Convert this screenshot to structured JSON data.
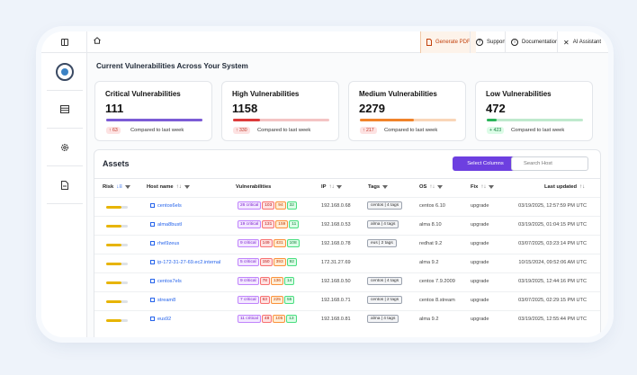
{
  "sidebar": {
    "toggle_icon": "sidebar-toggle-icon",
    "items": [
      {
        "name": "logo"
      },
      {
        "name": "assets",
        "icon": "table-icon"
      },
      {
        "name": "settings",
        "icon": "gear-icon"
      },
      {
        "name": "reports",
        "icon": "file-icon"
      }
    ]
  },
  "topbar": {
    "generate_pdf": "Generate PDF",
    "support": "Support",
    "documentation": "Documentation",
    "ai_assistant": "AI Assistant"
  },
  "page_title": "Current Vulnerabilities Across Your System",
  "cards": [
    {
      "title": "Critical Vulnerabilities",
      "count": "111",
      "change": "↑ 63",
      "compare": "Compared to last week",
      "color": "#7c5cd6",
      "track": "#d9cdf3",
      "fill": 1.0
    },
    {
      "title": "High Vulnerabilities",
      "count": "1158",
      "change": "↑ 330",
      "compare": "Compared to last week",
      "color": "#dc3b3b",
      "track": "#f4c4c4",
      "fill": 0.28
    },
    {
      "title": "Medium Vulnerabilities",
      "count": "2279",
      "change": "↑ 217",
      "compare": "Compared to last week",
      "color": "#f0832a",
      "track": "#f9d6b8",
      "fill": 0.56
    },
    {
      "title": "Low Vulnerabilities",
      "count": "472",
      "change": "+ 423",
      "compare": "Compared to last week",
      "color": "#2bb55a",
      "track": "#bfe9cd",
      "fill": 0.1
    }
  ],
  "assets": {
    "title": "Assets",
    "select_columns": "Select Columns",
    "search_placeholder": "Search Host",
    "columns": {
      "risk": "Risk",
      "host": "Host name",
      "vulns": "Vulnerabilities",
      "ip": "IP",
      "tags": "Tags",
      "os": "OS",
      "fix": "Fix",
      "updated": "Last updated"
    },
    "rows": [
      {
        "host": "centos6els",
        "c": "26 critical",
        "h": "103",
        "m": "94",
        "l": "32",
        "ip": "192.168.0.68",
        "tag": "centos | 4 tags",
        "os": "centos 6.10",
        "fix": "upgrade",
        "updated": "03/19/2025, 12:57:59 PM UTC"
      },
      {
        "host": "alma8bustl",
        "c": "19 critical",
        "h": "131",
        "m": "159",
        "l": "11",
        "ip": "192.168.0.53",
        "tag": "alma | 4 tags",
        "os": "alma 8.10",
        "fix": "upgrade",
        "updated": "03/19/2025, 01:04:15 PM UTC"
      },
      {
        "host": "rhel9zeus",
        "c": "9 critical",
        "h": "149",
        "m": "431",
        "l": "108",
        "ip": "192.168.0.78",
        "tag": "eus | 2 tags",
        "os": "redhat 9.2",
        "fix": "upgrade",
        "updated": "03/07/2025, 03:23:14 PM UTC"
      },
      {
        "host": "ip-172-31-27-69.ec2.internal",
        "c": "5 critical",
        "h": "150",
        "m": "393",
        "l": "92",
        "ip": "172.31.27.69",
        "tag": "",
        "os": "alma 9.2",
        "fix": "upgrade",
        "updated": "10/15/2024, 09:52:06 AM UTC"
      },
      {
        "host": "centos7els",
        "c": "9 critical",
        "h": "78",
        "m": "136",
        "l": "14",
        "ip": "192.168.0.50",
        "tag": "centos | 4 tags",
        "os": "centos 7.9.2009",
        "fix": "upgrade",
        "updated": "03/19/2025, 12:44:16 PM UTC"
      },
      {
        "host": "stream8",
        "c": "7 critical",
        "h": "63",
        "m": "225",
        "l": "55",
        "ip": "192.168.0.71",
        "tag": "centos | 2 tags",
        "os": "centos 8.stream",
        "fix": "upgrade",
        "updated": "03/07/2025, 02:29:15 PM UTC"
      },
      {
        "host": "eus92",
        "c": "11 critical",
        "h": "48",
        "m": "105",
        "l": "13",
        "ip": "192.168.0.81",
        "tag": "alma | 4 tags",
        "os": "alma 9.2",
        "fix": "upgrade",
        "updated": "03/19/2025, 12:55:44 PM UTC"
      }
    ]
  }
}
